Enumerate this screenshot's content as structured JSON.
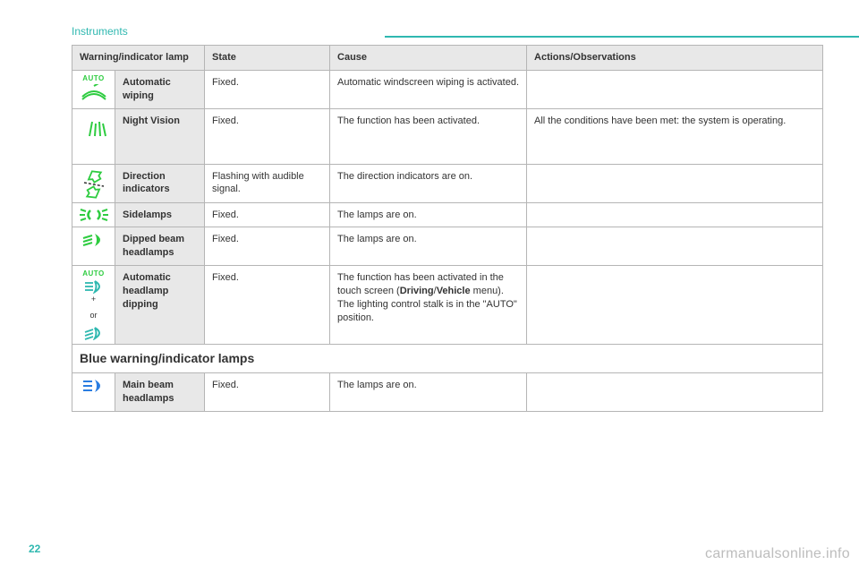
{
  "header": {
    "section": "Instruments"
  },
  "page_number": "22",
  "watermark": "carmanualsonline.info",
  "colors": {
    "accent": "#2fb8b0",
    "green": "#2ecc40",
    "blue": "#2a7de1",
    "border": "#b5b5b5",
    "header_bg": "#e8e8e8"
  },
  "table": {
    "columns": [
      "Warning/indicator lamp",
      "State",
      "Cause",
      "Actions/Observations"
    ],
    "rows": [
      {
        "icon": "auto-wiper",
        "name": "Automatic wiping",
        "state": "Fixed.",
        "cause": "Automatic windscreen wiping is activated.",
        "actions": ""
      },
      {
        "icon": "night-vision",
        "name": "Night Vision",
        "state": "Fixed.",
        "cause": "The function has been activated.",
        "actions": "All the conditions have been met: the system is operating."
      },
      {
        "icon": "direction-indicators",
        "name": "Direction indicators",
        "state": "Flashing with audible signal.",
        "cause": "The direction indicators are on.",
        "actions": ""
      },
      {
        "icon": "sidelamps",
        "name": "Sidelamps",
        "state": "Fixed.",
        "cause": "The lamps are on.",
        "actions": ""
      },
      {
        "icon": "dipped-beam",
        "name": "Dipped beam headlamps",
        "state": "Fixed.",
        "cause": "The lamps are on.",
        "actions": ""
      },
      {
        "icon": "auto-dipping",
        "name": "Automatic headlamp dipping",
        "state": "Fixed.",
        "cause_html": "The function has been activated in the touch screen (<b>Driving</b>/<b>Vehicle</b> menu).<br>The lighting control stalk is in the \"AUTO\" position.",
        "actions": "",
        "auto_label": "AUTO",
        "plus_label": "+",
        "or_label": "or"
      }
    ],
    "section_header": "Blue warning/indicator lamps",
    "blue_rows": [
      {
        "icon": "main-beam",
        "name": "Main beam headlamps",
        "state": "Fixed.",
        "cause": "The lamps are on.",
        "actions": ""
      }
    ]
  }
}
